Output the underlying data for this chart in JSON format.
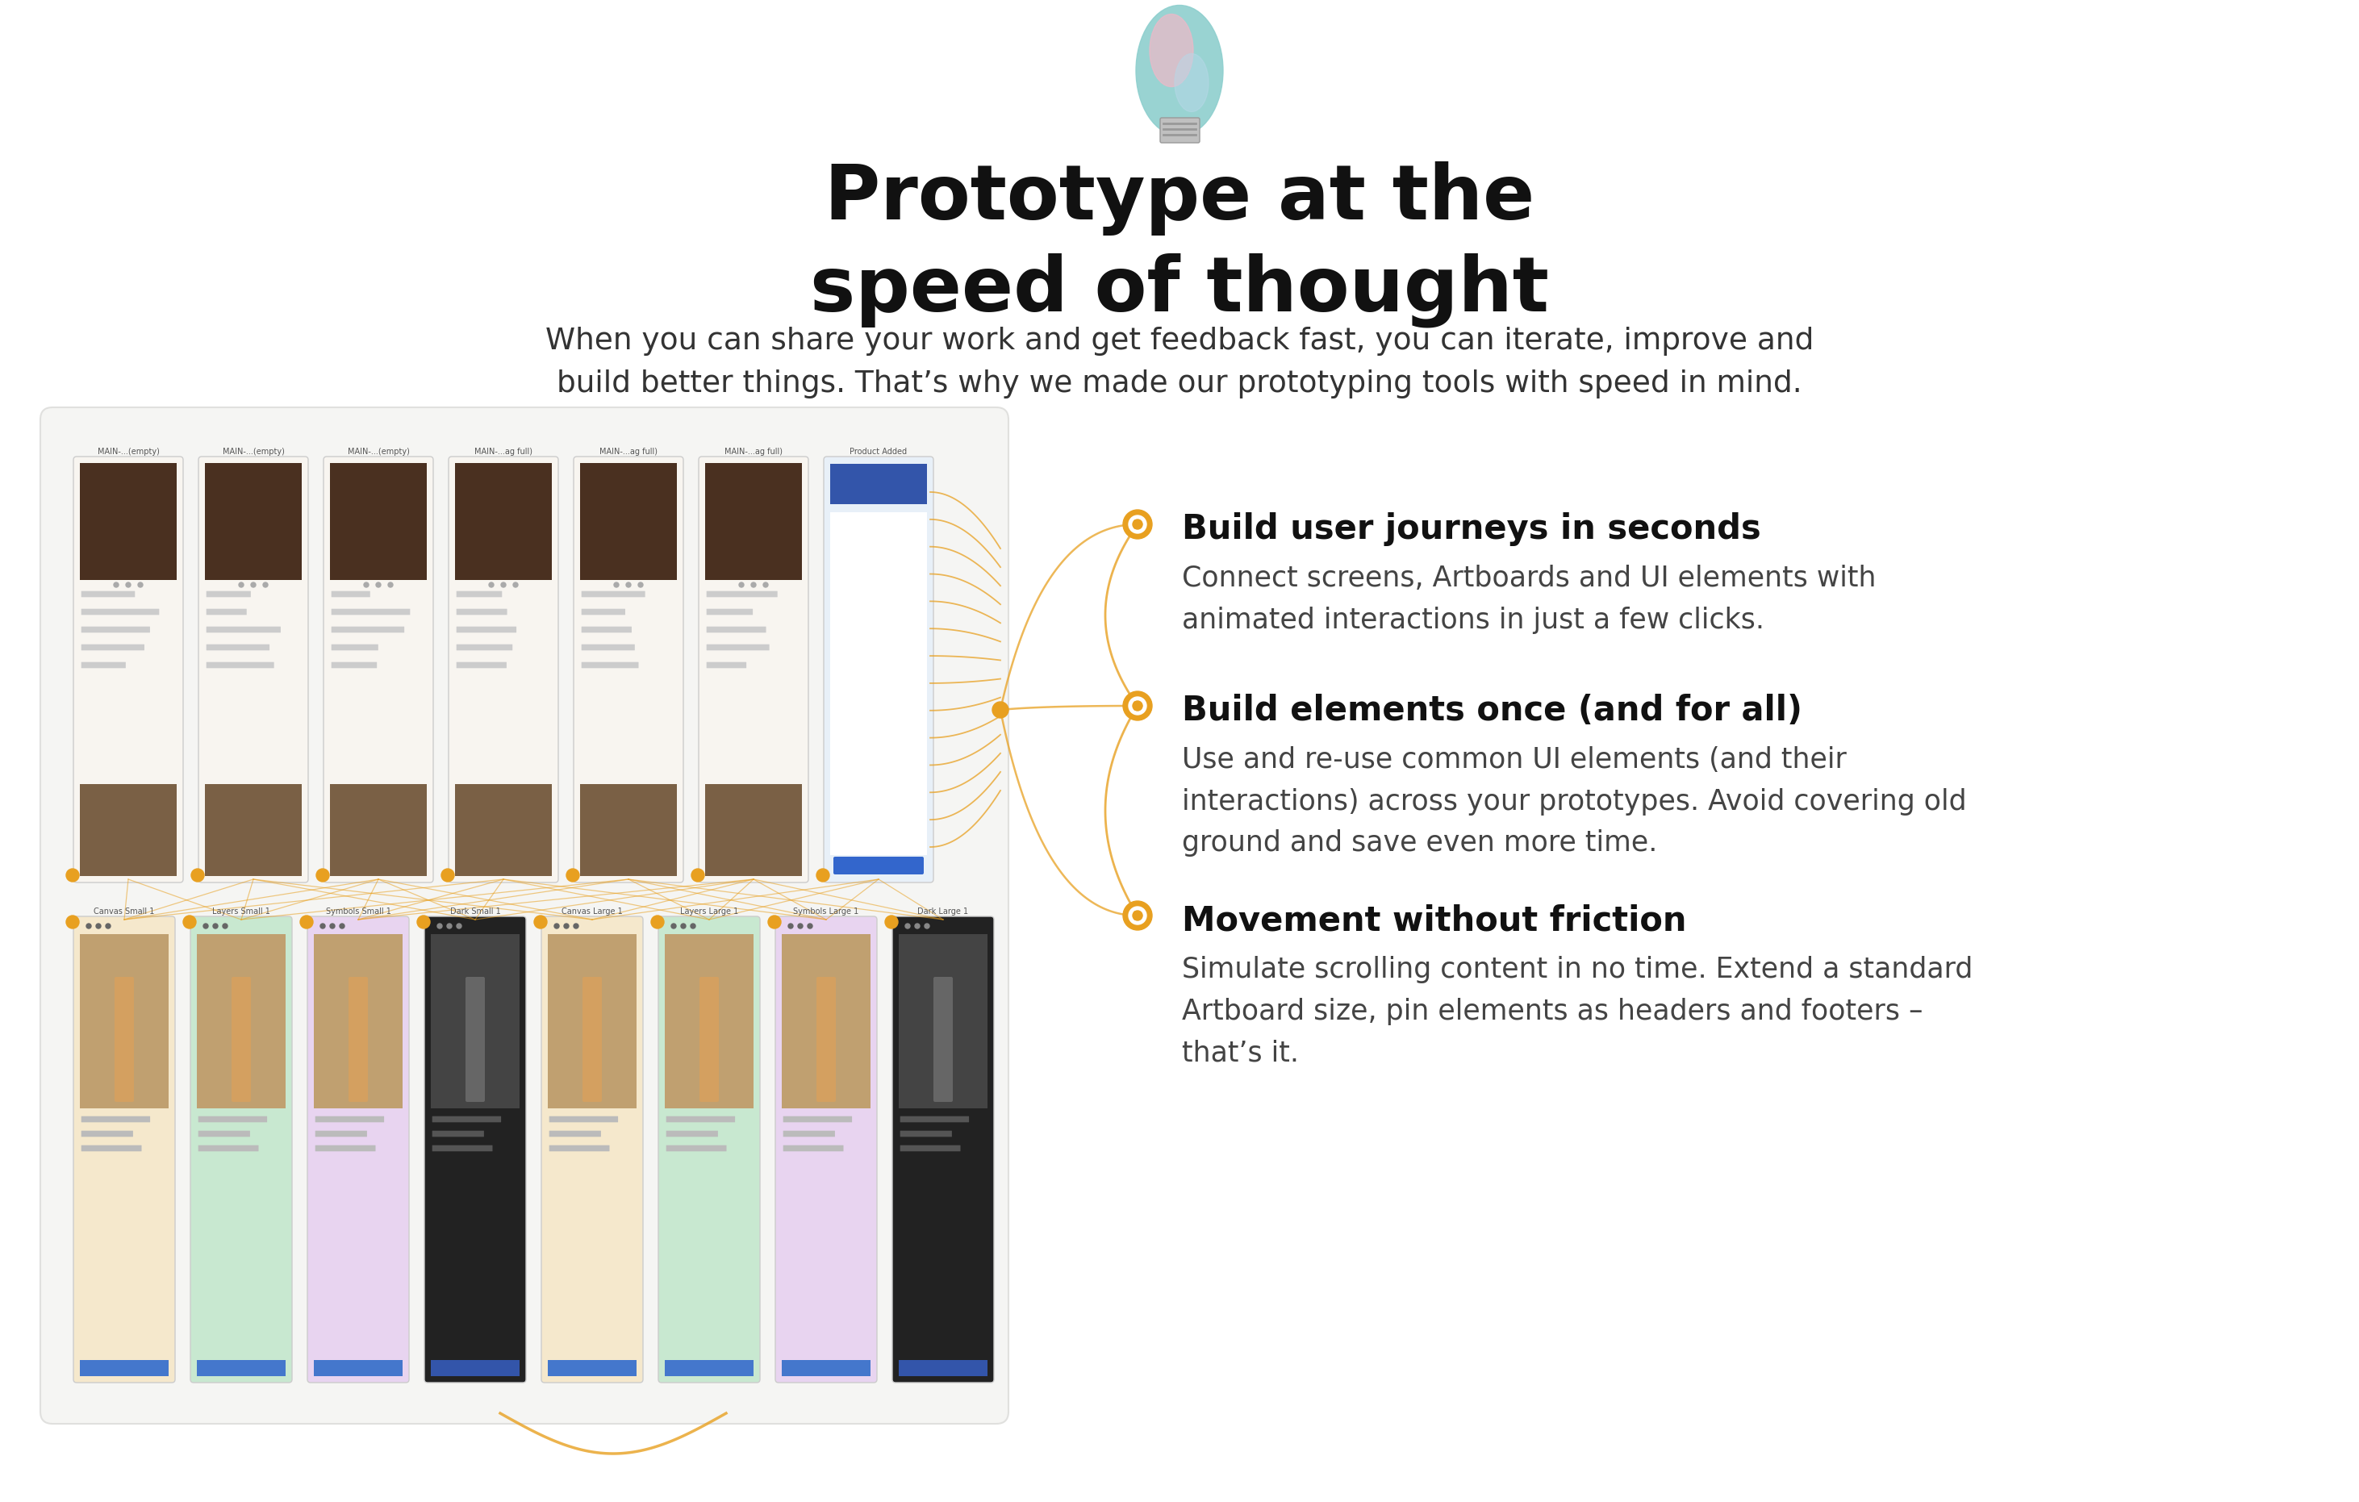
{
  "bg_color": "#ffffff",
  "title_line1": "Prototype at the",
  "title_line2": "speed of thought",
  "subtitle_line1": "When you can share your work and get feedback fast, you can iterate, improve and",
  "subtitle_line2": "build better things. That’s why we made our prototyping tools with speed in mind.",
  "features": [
    {
      "title": "Build user journeys in seconds",
      "body": "Connect screens, Artboards and UI elements with\nanimated interactions in just a few clicks."
    },
    {
      "title": "Build elements once (and for all)",
      "body": "Use and re-use common UI elements (and their\ninteractions) across your prototypes. Avoid covering old\nground and save even more time."
    },
    {
      "title": "Movement without friction",
      "body": "Simulate scrolling content in no time. Extend a standard\nArtboard size, pin elements as headers and footers –\nthat’s it."
    }
  ],
  "title_fontsize": 68,
  "subtitle_fontsize": 27,
  "feature_title_fontsize": 30,
  "feature_body_fontsize": 25,
  "title_color": "#111111",
  "subtitle_color": "#333333",
  "feature_title_color": "#111111",
  "feature_body_color": "#444444",
  "accent_color": "#E8A020",
  "panel_bg": "#f5f5f3",
  "panel_border": "#e0e0de",
  "bulb_teal": "#8ecfce",
  "bulb_pink": "#f0b8c8",
  "bulb_blue": "#b8d8e8",
  "bulb_base": "#c0c0c0"
}
